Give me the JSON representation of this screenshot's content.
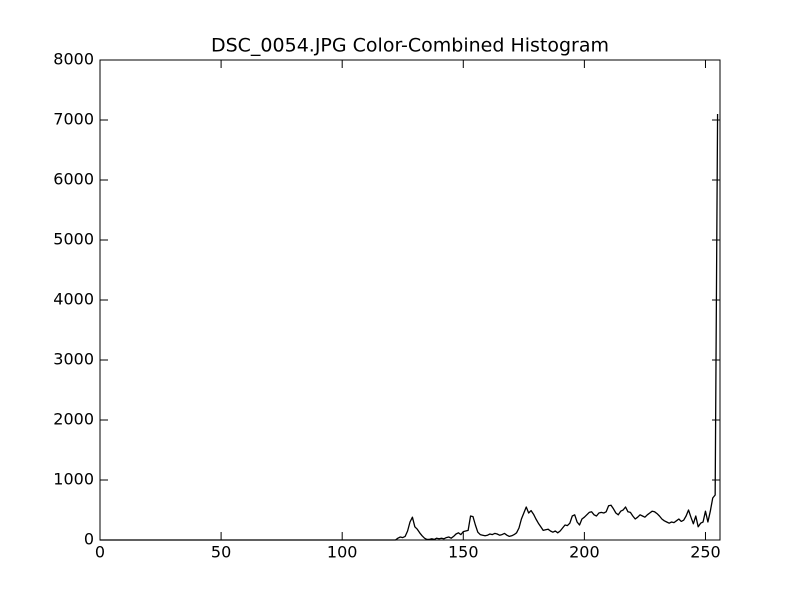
{
  "chart_data": {
    "type": "line",
    "title": "DSC_0054.JPG Color-Combined Histogram",
    "color": "#000000",
    "xlim": [
      0,
      256
    ],
    "ylim": [
      0,
      8000
    ],
    "xticks": [
      0,
      50,
      100,
      150,
      200,
      250
    ],
    "yticks": [
      0,
      1000,
      2000,
      3000,
      4000,
      5000,
      6000,
      7000,
      8000
    ],
    "x": [
      0,
      1,
      2,
      3,
      4,
      5,
      6,
      7,
      8,
      9,
      10,
      11,
      12,
      13,
      14,
      15,
      16,
      17,
      18,
      19,
      20,
      21,
      22,
      23,
      24,
      25,
      26,
      27,
      28,
      29,
      30,
      31,
      32,
      33,
      34,
      35,
      36,
      37,
      38,
      39,
      40,
      41,
      42,
      43,
      44,
      45,
      46,
      47,
      48,
      49,
      50,
      51,
      52,
      53,
      54,
      55,
      56,
      57,
      58,
      59,
      60,
      61,
      62,
      63,
      64,
      65,
      66,
      67,
      68,
      69,
      70,
      71,
      72,
      73,
      74,
      75,
      76,
      77,
      78,
      79,
      80,
      81,
      82,
      83,
      84,
      85,
      86,
      87,
      88,
      89,
      90,
      91,
      92,
      93,
      94,
      95,
      96,
      97,
      98,
      99,
      100,
      101,
      102,
      103,
      104,
      105,
      106,
      107,
      108,
      109,
      110,
      111,
      112,
      113,
      114,
      115,
      116,
      117,
      118,
      119,
      120,
      121,
      122,
      123,
      124,
      125,
      126,
      127,
      128,
      129,
      130,
      131,
      132,
      133,
      134,
      135,
      136,
      137,
      138,
      139,
      140,
      141,
      142,
      143,
      144,
      145,
      146,
      147,
      148,
      149,
      150,
      151,
      152,
      153,
      154,
      155,
      156,
      157,
      158,
      159,
      160,
      161,
      162,
      163,
      164,
      165,
      166,
      167,
      168,
      169,
      170,
      171,
      172,
      173,
      174,
      175,
      176,
      177,
      178,
      179,
      180,
      181,
      182,
      183,
      184,
      185,
      186,
      187,
      188,
      189,
      190,
      191,
      192,
      193,
      194,
      195,
      196,
      197,
      198,
      199,
      200,
      201,
      202,
      203,
      204,
      205,
      206,
      207,
      208,
      209,
      210,
      211,
      212,
      213,
      214,
      215,
      216,
      217,
      218,
      219,
      220,
      221,
      222,
      223,
      224,
      225,
      226,
      227,
      228,
      229,
      230,
      231,
      232,
      233,
      234,
      235,
      236,
      237,
      238,
      239,
      240,
      241,
      242,
      243,
      244,
      245,
      246,
      247,
      248,
      249,
      250,
      251,
      252,
      253,
      254,
      255
    ],
    "values": [
      0,
      0,
      0,
      0,
      0,
      0,
      0,
      0,
      0,
      0,
      0,
      0,
      0,
      0,
      0,
      0,
      0,
      0,
      0,
      0,
      0,
      0,
      0,
      0,
      0,
      0,
      0,
      0,
      0,
      0,
      0,
      0,
      0,
      0,
      0,
      0,
      0,
      0,
      0,
      0,
      0,
      0,
      0,
      0,
      0,
      0,
      0,
      0,
      0,
      0,
      0,
      0,
      0,
      0,
      0,
      0,
      0,
      0,
      0,
      0,
      0,
      0,
      0,
      0,
      0,
      0,
      0,
      0,
      0,
      0,
      0,
      0,
      0,
      0,
      0,
      0,
      0,
      0,
      0,
      0,
      0,
      0,
      0,
      0,
      0,
      0,
      0,
      0,
      0,
      0,
      0,
      0,
      0,
      0,
      0,
      0,
      0,
      0,
      0,
      0,
      0,
      0,
      0,
      0,
      0,
      0,
      0,
      0,
      0,
      0,
      0,
      0,
      0,
      0,
      0,
      0,
      0,
      0,
      0,
      0,
      0,
      0,
      0,
      30,
      50,
      40,
      60,
      150,
      300,
      380,
      220,
      180,
      120,
      70,
      30,
      10,
      10,
      20,
      10,
      30,
      20,
      30,
      20,
      40,
      50,
      30,
      60,
      100,
      120,
      90,
      140,
      150,
      160,
      400,
      390,
      250,
      130,
      90,
      80,
      70,
      80,
      100,
      90,
      110,
      100,
      80,
      90,
      110,
      80,
      60,
      70,
      90,
      120,
      200,
      350,
      450,
      550,
      450,
      490,
      430,
      350,
      280,
      220,
      160,
      170,
      180,
      150,
      130,
      150,
      120,
      150,
      200,
      250,
      240,
      280,
      400,
      420,
      300,
      250,
      350,
      380,
      420,
      460,
      470,
      420,
      400,
      450,
      460,
      450,
      470,
      570,
      580,
      520,
      450,
      420,
      480,
      500,
      550,
      470,
      460,
      400,
      350,
      380,
      420,
      400,
      380,
      420,
      450,
      480,
      470,
      440,
      400,
      350,
      320,
      300,
      280,
      300,
      290,
      320,
      350,
      310,
      330,
      400,
      500,
      380,
      270,
      400,
      220,
      280,
      300,
      480,
      300,
      480,
      700,
      750,
      7100
    ]
  }
}
